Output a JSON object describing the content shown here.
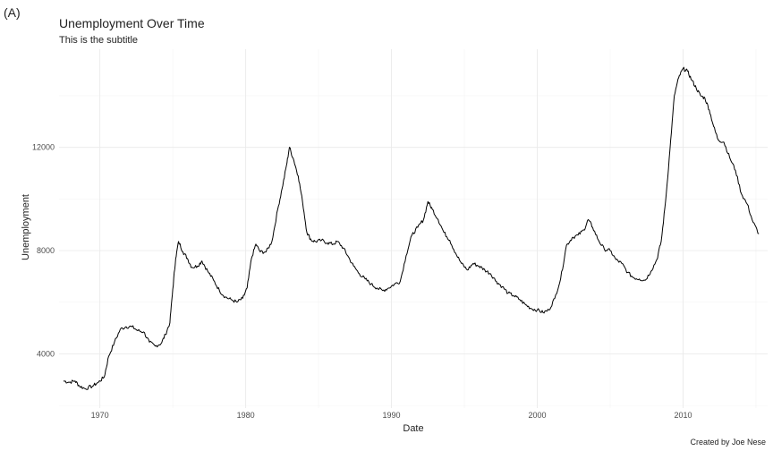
{
  "panel_tag": "(A)",
  "caption": "Created by Joe Nese",
  "chart_data": {
    "type": "line",
    "title": "Unemployment Over Time",
    "subtitle": "This is the subtitle",
    "xlabel": "Date",
    "ylabel": "Unemployment",
    "xlim": [
      1967.2,
      2015.8
    ],
    "ylim": [
      1900,
      15800
    ],
    "x_ticks": [
      1970,
      1980,
      1990,
      2000,
      2010
    ],
    "x_tick_labels": [
      "1970",
      "1980",
      "1990",
      "2000",
      "2010"
    ],
    "y_ticks": [
      4000,
      8000,
      12000
    ],
    "y_tick_labels": [
      "4000",
      "8000",
      "12000"
    ],
    "grid": true,
    "series": [
      {
        "color": "#000000",
        "x": [
          1967.5,
          1967.9,
          1968.3,
          1968.6,
          1969.0,
          1969.5,
          1969.9,
          1970.3,
          1970.6,
          1971.0,
          1971.4,
          1971.8,
          1972.2,
          1972.6,
          1973.0,
          1973.4,
          1973.8,
          1974.2,
          1974.5,
          1974.8,
          1975.0,
          1975.2,
          1975.4,
          1975.7,
          1976.0,
          1976.3,
          1976.7,
          1977.0,
          1977.4,
          1977.8,
          1978.2,
          1978.6,
          1979.0,
          1979.4,
          1979.8,
          1980.1,
          1980.4,
          1980.7,
          1981.0,
          1981.4,
          1981.8,
          1982.2,
          1982.5,
          1982.8,
          1983.0,
          1983.3,
          1983.6,
          1983.9,
          1984.2,
          1984.5,
          1984.8,
          1985.2,
          1985.6,
          1986.0,
          1986.3,
          1986.7,
          1987.0,
          1987.4,
          1987.8,
          1988.2,
          1988.6,
          1989.0,
          1989.4,
          1989.8,
          1990.2,
          1990.6,
          1991.0,
          1991.4,
          1991.8,
          1992.2,
          1992.5,
          1992.8,
          1993.2,
          1993.6,
          1994.0,
          1994.4,
          1994.8,
          1995.2,
          1995.6,
          1996.0,
          1996.4,
          1996.8,
          1997.2,
          1997.6,
          1998.0,
          1998.4,
          1998.8,
          1999.2,
          1999.6,
          2000.0,
          2000.4,
          2000.8,
          2001.2,
          2001.6,
          2002.0,
          2002.4,
          2002.8,
          2003.2,
          2003.5,
          2003.8,
          2004.2,
          2004.6,
          2005.0,
          2005.4,
          2005.8,
          2006.2,
          2006.6,
          2007.0,
          2007.4,
          2007.8,
          2008.2,
          2008.5,
          2008.8,
          2009.1,
          2009.4,
          2009.7,
          2010.0,
          2010.3,
          2010.6,
          2010.9,
          2011.2,
          2011.5,
          2011.8,
          2012.1,
          2012.4,
          2012.8,
          2013.2,
          2013.6,
          2014.0,
          2014.4,
          2014.8,
          2015.2
        ],
        "y": [
          2950,
          2900,
          2950,
          2750,
          2650,
          2750,
          2900,
          3100,
          3900,
          4450,
          4950,
          5050,
          5050,
          4900,
          4850,
          4450,
          4300,
          4400,
          4750,
          5200,
          6500,
          7700,
          8350,
          7950,
          7700,
          7350,
          7400,
          7600,
          7200,
          6850,
          6450,
          6200,
          6100,
          6000,
          6150,
          6550,
          7700,
          8250,
          7950,
          7950,
          8350,
          9600,
          10400,
          11300,
          12000,
          11500,
          10900,
          9900,
          8700,
          8400,
          8350,
          8400,
          8300,
          8250,
          8350,
          8100,
          7800,
          7400,
          7100,
          6900,
          6700,
          6550,
          6450,
          6550,
          6700,
          6800,
          7800,
          8600,
          8900,
          9200,
          9900,
          9600,
          9200,
          8700,
          8400,
          7900,
          7500,
          7250,
          7500,
          7400,
          7250,
          7100,
          6800,
          6600,
          6350,
          6250,
          6100,
          5900,
          5750,
          5700,
          5600,
          5700,
          6150,
          6900,
          8200,
          8500,
          8600,
          8800,
          9200,
          8900,
          8400,
          8050,
          8000,
          7650,
          7500,
          7150,
          6950,
          6900,
          6850,
          7200,
          7650,
          8350,
          9900,
          11900,
          14000,
          14700,
          15050,
          14950,
          14600,
          14300,
          14000,
          13900,
          13450,
          12800,
          12300,
          12200,
          11600,
          11100,
          10200,
          9800,
          9100,
          8650
        ]
      }
    ]
  }
}
